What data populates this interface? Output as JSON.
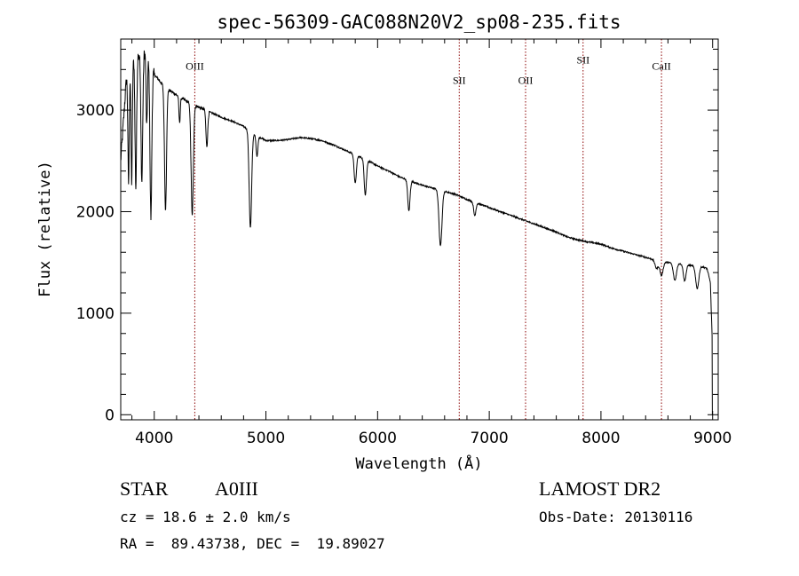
{
  "chart_data": {
    "type": "line",
    "title": "spec-56309-GAC088N20V2_sp08-235.fits",
    "xlabel": "Wavelength (Å)",
    "ylabel": "Flux (relative)",
    "xlim": [
      3700,
      9050
    ],
    "ylim": [
      -50,
      3700
    ],
    "xticks": [
      4000,
      5000,
      6000,
      7000,
      8000,
      9000
    ],
    "yticks": [
      0,
      1000,
      2000,
      3000
    ],
    "grid": false,
    "line_color": "#000000",
    "continuum": {
      "x": [
        3700,
        3750,
        3800,
        3850,
        3900,
        3950,
        4000,
        4100,
        4200,
        4300,
        4400,
        4500,
        4600,
        4700,
        4800,
        4900,
        5000,
        5100,
        5200,
        5300,
        5400,
        5500,
        5600,
        5700,
        5800,
        5900,
        6000,
        6100,
        6200,
        6300,
        6400,
        6500,
        6600,
        6700,
        6800,
        6900,
        7000,
        7100,
        7200,
        7300,
        7400,
        7500,
        7600,
        7700,
        7800,
        7900,
        8000,
        8100,
        8200,
        8300,
        8400,
        8500,
        8600,
        8700,
        8800,
        8900,
        8950,
        8980,
        9000
      ],
      "y": [
        2500,
        3300,
        3500,
        3550,
        3600,
        3500,
        3350,
        3220,
        3150,
        3080,
        3030,
        2980,
        2930,
        2890,
        2840,
        2760,
        2700,
        2700,
        2710,
        2730,
        2720,
        2700,
        2660,
        2610,
        2560,
        2510,
        2450,
        2400,
        2340,
        2300,
        2260,
        2230,
        2200,
        2170,
        2120,
        2080,
        2040,
        2000,
        1960,
        1920,
        1880,
        1840,
        1800,
        1750,
        1720,
        1700,
        1680,
        1640,
        1610,
        1580,
        1550,
        1520,
        1500,
        1490,
        1470,
        1460,
        1440,
        1300,
        600
      ]
    },
    "absorption_lines": [
      {
        "center": 3770,
        "depth": 1100,
        "width": 6
      },
      {
        "center": 3798,
        "depth": 1200,
        "width": 6
      },
      {
        "center": 3835,
        "depth": 1300,
        "width": 7
      },
      {
        "center": 3889,
        "depth": 1300,
        "width": 8
      },
      {
        "center": 3933,
        "depth": 700,
        "width": 6
      },
      {
        "center": 3970,
        "depth": 1500,
        "width": 8
      },
      {
        "center": 4101,
        "depth": 1200,
        "width": 9
      },
      {
        "center": 4227,
        "depth": 250,
        "width": 6
      },
      {
        "center": 4340,
        "depth": 1100,
        "width": 10
      },
      {
        "center": 4471,
        "depth": 350,
        "width": 8
      },
      {
        "center": 4861,
        "depth": 950,
        "width": 11
      },
      {
        "center": 4920,
        "depth": 200,
        "width": 8
      },
      {
        "center": 5800,
        "depth": 280,
        "width": 10
      },
      {
        "center": 5890,
        "depth": 350,
        "width": 10
      },
      {
        "center": 6280,
        "depth": 300,
        "width": 10
      },
      {
        "center": 6563,
        "depth": 550,
        "width": 13
      },
      {
        "center": 6870,
        "depth": 130,
        "width": 10
      },
      {
        "center": 8498,
        "depth": 80,
        "width": 14
      },
      {
        "center": 8542,
        "depth": 140,
        "width": 14
      },
      {
        "center": 8662,
        "depth": 170,
        "width": 14
      },
      {
        "center": 8750,
        "depth": 160,
        "width": 12
      },
      {
        "center": 8862,
        "depth": 220,
        "width": 14
      }
    ],
    "annotations": [
      {
        "label": "OIII",
        "x": 4363,
        "label_y": 3400
      },
      {
        "label": "SII",
        "x": 6731,
        "label_y": 3260
      },
      {
        "label": "OII",
        "x": 7325,
        "label_y": 3260
      },
      {
        "label": "SII",
        "x": 7840,
        "label_y": 3460
      },
      {
        "label": "CaII",
        "x": 8542,
        "label_y": 3400
      }
    ],
    "annotation_color": "#8b0000"
  },
  "info": {
    "object_class": "STAR",
    "subclass": "A0III",
    "survey": "LAMOST DR2",
    "redshift": "cz = 18.6 ± 2.0 km/s",
    "obs_date": "Obs-Date: 20130116",
    "coords": "RA =  89.43738, DEC =  19.89027"
  }
}
